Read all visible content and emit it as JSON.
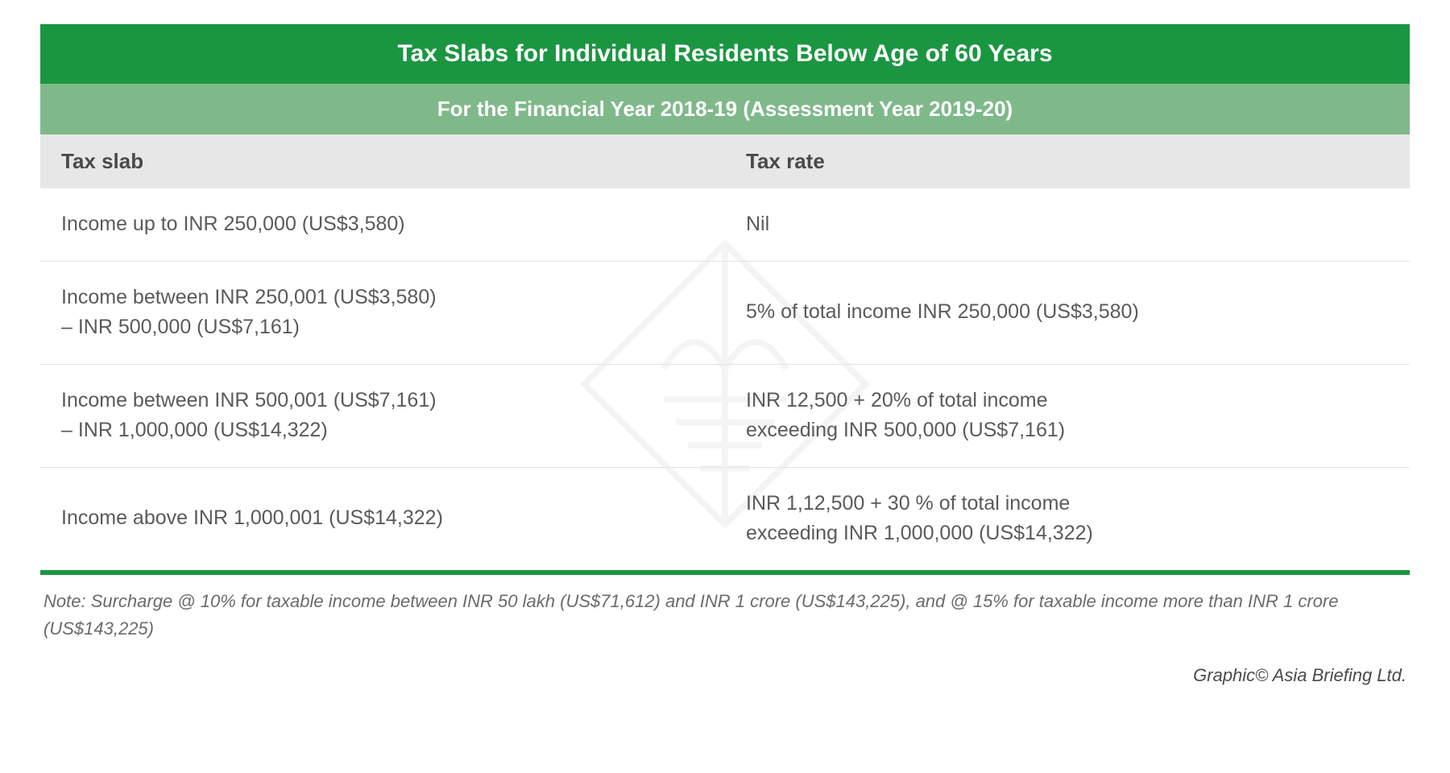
{
  "header": {
    "title": "Tax Slabs for Individual Residents Below Age of 60 Years",
    "subtitle": "For the Financial Year 2018-19 (Assessment Year 2019-20)"
  },
  "columns": [
    "Tax slab",
    "Tax rate"
  ],
  "rows": [
    {
      "slab": "Income up to INR 250,000 (US$3,580)",
      "rate": "Nil"
    },
    {
      "slab": "Income between INR 250,001 (US$3,580)\n– INR 500,000 (US$7,161)",
      "rate": "5% of total income INR 250,000 (US$3,580)"
    },
    {
      "slab": "Income between INR 500,001 (US$7,161)\n– INR 1,000,000 (US$14,322)",
      "rate": "INR 12,500 + 20% of total income\nexceeding INR 500,000 (US$7,161)"
    },
    {
      "slab": "Income above INR 1,000,001 (US$14,322)",
      "rate": "INR 1,12,500 + 30 % of total income\nexceeding INR 1,000,000 (US$14,322)"
    }
  ],
  "note": "Note: Surcharge @ 10% for taxable income between INR 50 lakh (US$71,612) and INR 1 crore (US$143,225), and @ 15% for taxable income more than INR 1 crore (US$143,225)",
  "credit": "Graphic© Asia Briefing Ltd.",
  "style": {
    "title_bg": "#1a9641",
    "subtitle_bg": "#7fb98a",
    "header_bg": "#e7e7e7",
    "row_border": "#e3e3e3",
    "bottom_border": "#1a9641",
    "text_color": "#5a5a5a",
    "header_text_color": "#4a4a4a",
    "title_text_color": "#ffffff",
    "title_fontsize": 30,
    "subtitle_fontsize": 26,
    "header_fontsize": 26,
    "cell_fontsize": 25,
    "note_fontsize": 22,
    "watermark_color": "#7a7a7a",
    "watermark_opacity": 0.08
  }
}
